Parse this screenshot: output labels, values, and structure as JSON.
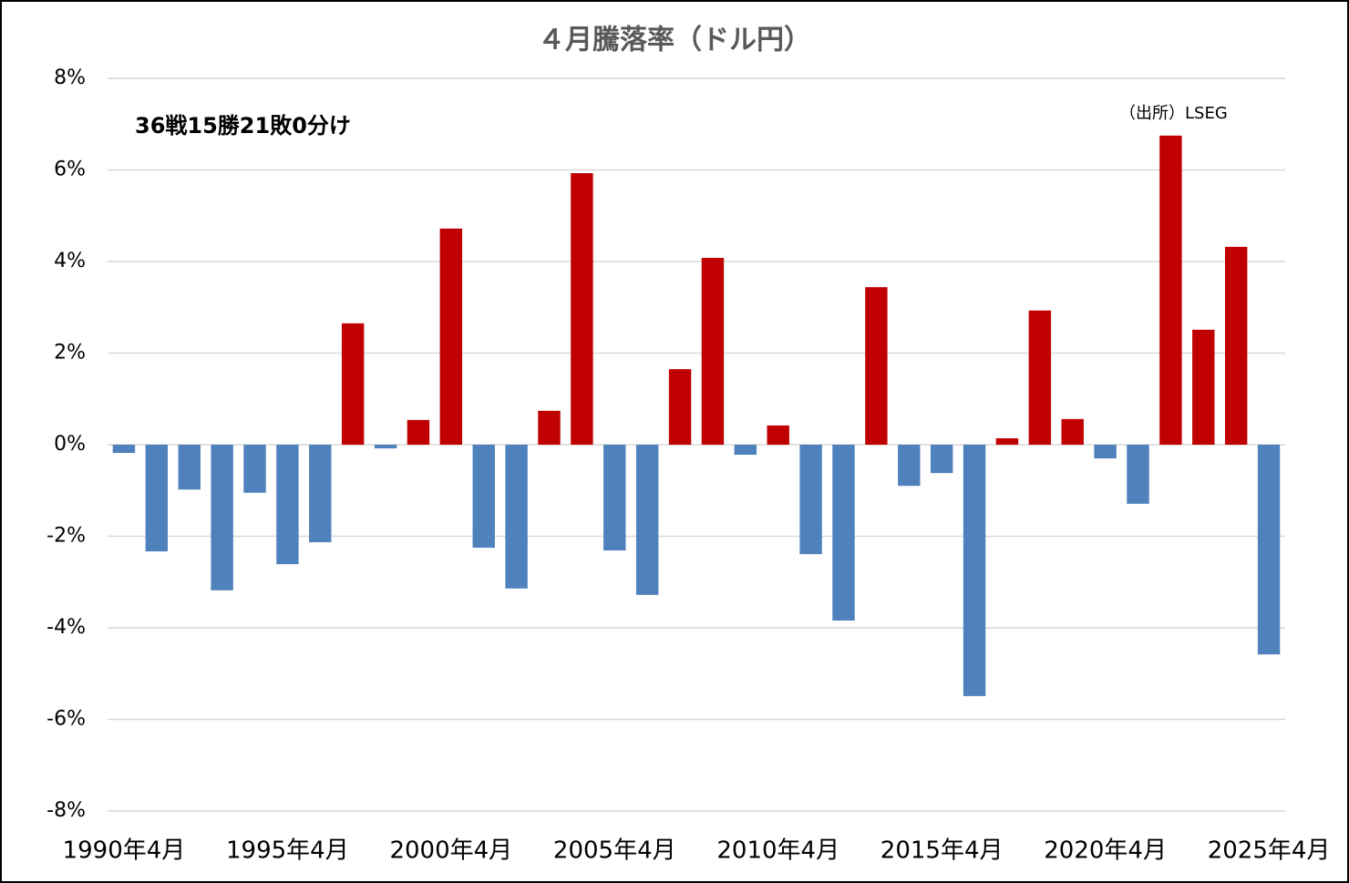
{
  "chart_data": {
    "type": "bar",
    "title": "４月騰落率（ドル円）",
    "annotations": [
      "36戦15勝21敗0分け",
      "（出所）LSEG"
    ],
    "categories": [
      "1990年4月",
      null,
      null,
      null,
      null,
      "1995年4月",
      null,
      null,
      null,
      null,
      "2000年4月",
      null,
      null,
      null,
      null,
      "2005年4月",
      null,
      null,
      null,
      null,
      "2010年4月",
      null,
      null,
      null,
      null,
      "2015年4月",
      null,
      null,
      null,
      null,
      "2020年4月",
      null,
      null,
      null,
      null,
      "2025年4月"
    ],
    "values": [
      -0.18,
      -2.33,
      -0.98,
      -3.18,
      -1.05,
      -2.61,
      -2.13,
      2.65,
      -0.08,
      0.54,
      4.72,
      -2.25,
      -3.14,
      0.74,
      5.93,
      -2.31,
      -3.28,
      1.65,
      4.08,
      -0.22,
      0.42,
      -2.39,
      -3.84,
      3.44,
      -0.9,
      -0.62,
      -5.49,
      0.14,
      2.93,
      0.56,
      -0.3,
      -1.29,
      6.75,
      2.51,
      4.32,
      -4.58
    ],
    "colors": [
      "#4f81bd",
      "#4f81bd",
      "#4f81bd",
      "#4f81bd",
      "#4f81bd",
      "#4f81bd",
      "#4f81bd",
      "#c00000",
      "#4f81bd",
      "#c00000",
      "#c00000",
      "#4f81bd",
      "#4f81bd",
      "#c00000",
      "#c00000",
      "#4f81bd",
      "#4f81bd",
      "#c00000",
      "#c00000",
      "#4f81bd",
      "#c00000",
      "#4f81bd",
      "#4f81bd",
      "#c00000",
      "#4f81bd",
      "#4f81bd",
      "#4f81bd",
      "#c00000",
      "#c00000",
      "#c00000",
      "#4f81bd",
      "#4f81bd",
      "#c00000",
      "#c00000",
      "#c00000",
      "#4f81bd"
    ],
    "ylim": [
      -8,
      8
    ],
    "yticks": [
      {
        "value": -8,
        "label": "-8%"
      },
      {
        "value": -6,
        "label": "-6%"
      },
      {
        "value": -4,
        "label": "-4%"
      },
      {
        "value": -2,
        "label": "-2%"
      },
      {
        "value": 0,
        "label": "0%"
      },
      {
        "value": 2,
        "label": "2%"
      },
      {
        "value": 4,
        "label": "4%"
      },
      {
        "value": 6,
        "label": "6%"
      },
      {
        "value": 8,
        "label": "8%"
      }
    ],
    "grid": true
  }
}
